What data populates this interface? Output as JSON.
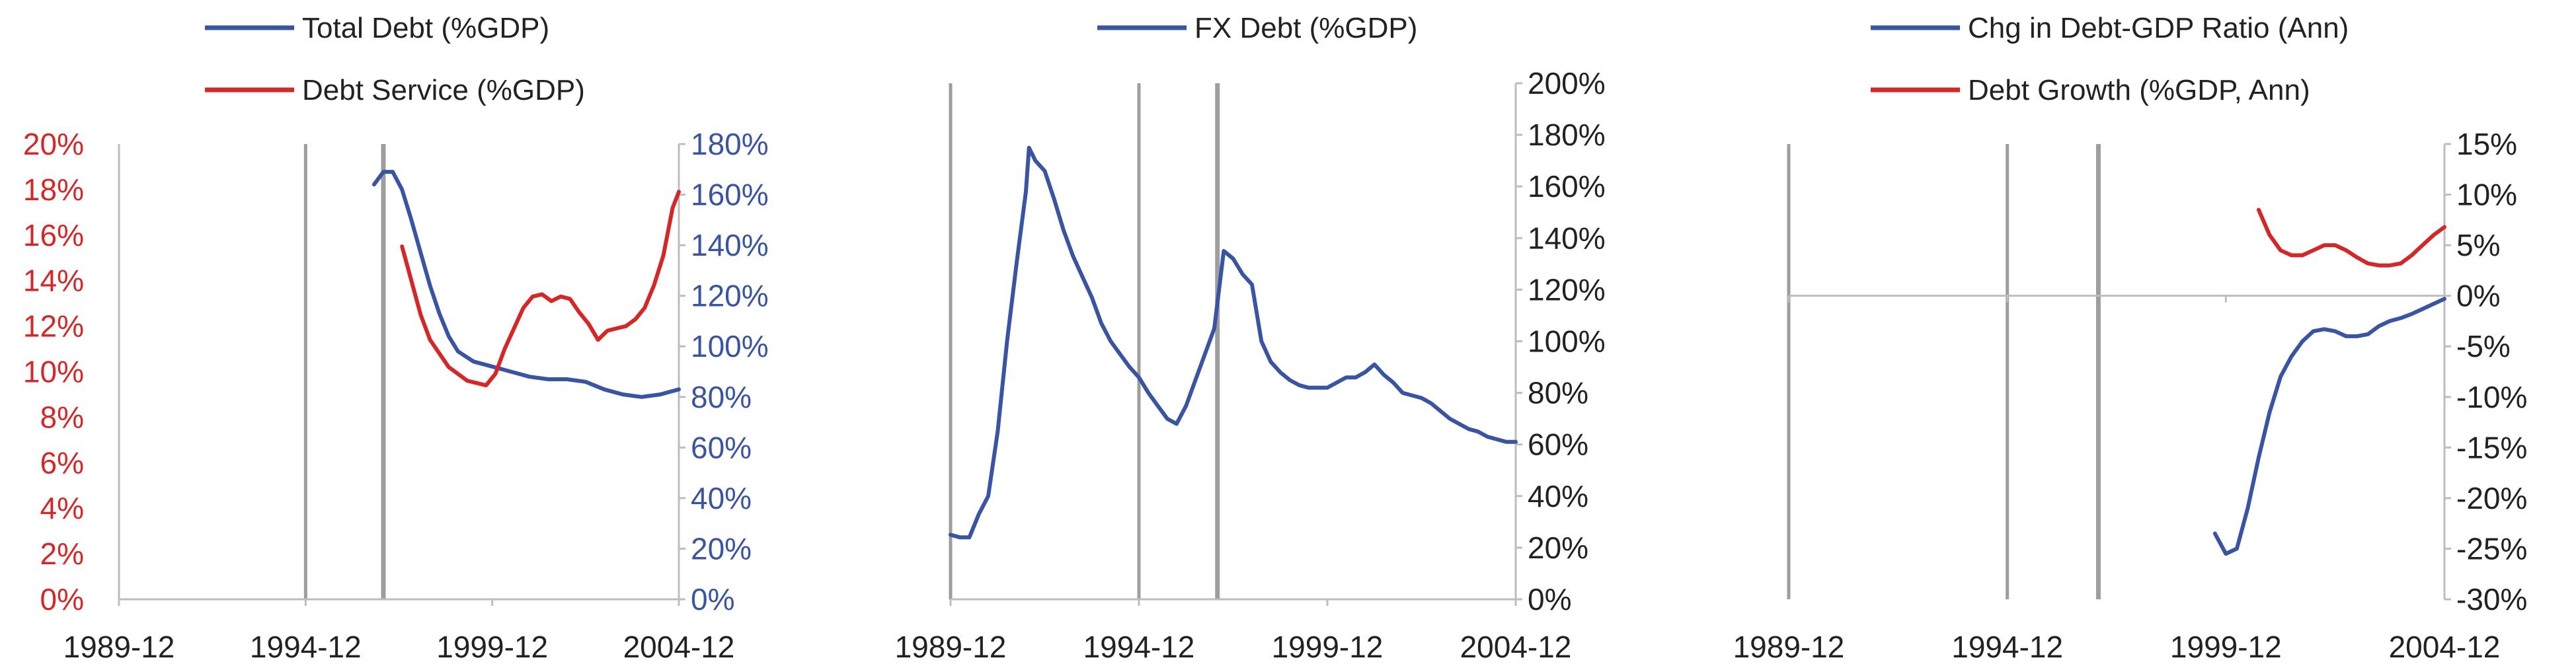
{
  "chart_data": [
    {
      "type": "line",
      "title": "",
      "x_ticks": [
        "1989-12",
        "1994-12",
        "1999-12",
        "2004-12"
      ],
      "x_range": [
        "1989-12",
        "2004-12"
      ],
      "vertical_markers": [
        "1994-12",
        "1997-01"
      ],
      "y_left": {
        "ticks": [
          "0%",
          "2%",
          "4%",
          "6%",
          "8%",
          "10%",
          "12%",
          "14%",
          "16%",
          "18%",
          "20%"
        ],
        "range": [
          0,
          20
        ],
        "color": "#d62728"
      },
      "y_right": {
        "ticks": [
          "0%",
          "20%",
          "40%",
          "60%",
          "80%",
          "100%",
          "120%",
          "140%",
          "160%",
          "180%"
        ],
        "range": [
          0,
          180
        ],
        "color": "#3a54a4"
      },
      "legend": [
        "Total Debt (%GDP)",
        "Debt Service (%GDP)"
      ],
      "series": [
        {
          "name": "Total Debt (%GDP)",
          "color": "#3a54a4",
          "axis": "right",
          "x": [
            "1996-10",
            "1997-01",
            "1997-04",
            "1997-07",
            "1997-10",
            "1998-01",
            "1998-04",
            "1998-07",
            "1998-10",
            "1999-01",
            "1999-06",
            "1999-12",
            "2000-06",
            "2000-12",
            "2001-06",
            "2001-12",
            "2002-06",
            "2002-12",
            "2003-06",
            "2003-12",
            "2004-06",
            "2004-12"
          ],
          "values": [
            164,
            169,
            169,
            162,
            150,
            137,
            124,
            113,
            104,
            98,
            94,
            92,
            90,
            88,
            87,
            87,
            86,
            83,
            81,
            80,
            81,
            83
          ]
        },
        {
          "name": "Debt Service (%GDP)",
          "color": "#d62728",
          "axis": "left",
          "x": [
            "1997-07",
            "1997-10",
            "1998-01",
            "1998-04",
            "1998-07",
            "1998-10",
            "1999-01",
            "1999-04",
            "1999-07",
            "1999-10",
            "2000-01",
            "2000-04",
            "2000-07",
            "2000-10",
            "2001-01",
            "2001-04",
            "2001-07",
            "2001-10",
            "2002-01",
            "2002-04",
            "2002-07",
            "2002-10",
            "2003-01",
            "2003-04",
            "2003-07",
            "2003-10",
            "2004-01",
            "2004-04",
            "2004-07",
            "2004-10",
            "2004-12"
          ],
          "values": [
            15.5,
            14.0,
            12.5,
            11.4,
            10.8,
            10.2,
            9.9,
            9.6,
            9.5,
            9.4,
            9.9,
            11.0,
            11.9,
            12.8,
            13.3,
            13.4,
            13.1,
            13.3,
            13.2,
            12.6,
            12.1,
            11.4,
            11.8,
            11.9,
            12.0,
            12.3,
            12.8,
            13.8,
            15.1,
            17.2,
            17.9
          ]
        }
      ]
    },
    {
      "type": "line",
      "title": "",
      "x_ticks": [
        "1989-12",
        "1994-12",
        "1999-12",
        "2004-12"
      ],
      "x_range": [
        "1989-12",
        "2004-12"
      ],
      "vertical_markers": [
        "1989-12",
        "1994-12",
        "1997-01"
      ],
      "y_right": {
        "ticks": [
          "0%",
          "20%",
          "40%",
          "60%",
          "80%",
          "100%",
          "120%",
          "140%",
          "160%",
          "180%",
          "200%"
        ],
        "range": [
          0,
          200
        ],
        "color": "#222222"
      },
      "legend": [
        "FX Debt (%GDP)"
      ],
      "series": [
        {
          "name": "FX Debt (%GDP)",
          "color": "#3a54a4",
          "axis": "right",
          "x": [
            "1989-12",
            "1990-03",
            "1990-06",
            "1990-09",
            "1990-12",
            "1991-03",
            "1991-06",
            "1991-09",
            "1991-12",
            "1992-01",
            "1992-03",
            "1992-06",
            "1992-09",
            "1992-12",
            "1993-03",
            "1993-06",
            "1993-09",
            "1993-12",
            "1994-03",
            "1994-06",
            "1994-09",
            "1994-12",
            "1995-03",
            "1995-06",
            "1995-09",
            "1995-12",
            "1996-03",
            "1996-06",
            "1996-09",
            "1996-12",
            "1997-03",
            "1997-06",
            "1997-09",
            "1997-12",
            "1998-03",
            "1998-06",
            "1998-09",
            "1998-12",
            "1999-03",
            "1999-06",
            "1999-09",
            "1999-12",
            "2000-03",
            "2000-06",
            "2000-09",
            "2000-12",
            "2001-03",
            "2001-06",
            "2001-09",
            "2001-12",
            "2002-03",
            "2002-06",
            "2002-09",
            "2002-12",
            "2003-03",
            "2003-06",
            "2003-09",
            "2003-12",
            "2004-03",
            "2004-06",
            "2004-09",
            "2004-12"
          ],
          "values": [
            25,
            24,
            24,
            33,
            40,
            65,
            100,
            130,
            158,
            175,
            170,
            166,
            155,
            143,
            133,
            125,
            117,
            107,
            100,
            95,
            90,
            86,
            80,
            75,
            70,
            68,
            75,
            85,
            95,
            105,
            135,
            132,
            126,
            122,
            100,
            92,
            88,
            85,
            83,
            82,
            82,
            82,
            84,
            86,
            86,
            88,
            91,
            87,
            84,
            80,
            79,
            78,
            76,
            73,
            70,
            68,
            66,
            65,
            63,
            62,
            61,
            61
          ]
        }
      ]
    },
    {
      "type": "line",
      "title": "",
      "x_ticks": [
        "1989-12",
        "1994-12",
        "1999-12",
        "2004-12"
      ],
      "x_range": [
        "1989-12",
        "2004-12"
      ],
      "vertical_markers": [
        "1989-12",
        "1994-12",
        "1997-01"
      ],
      "y_right": {
        "ticks": [
          "15%",
          "10%",
          "5%",
          "0%",
          "-5%",
          "-10%",
          "-15%",
          "-20%",
          "-25%",
          "-30%"
        ],
        "range": [
          -30,
          15
        ],
        "color": "#222222"
      },
      "legend": [
        "Chg in Debt-GDP Ratio (Ann)",
        "Debt Growth (%GDP, Ann)"
      ],
      "series": [
        {
          "name": "Chg in Debt-GDP Ratio (Ann)",
          "color": "#3a54a4",
          "axis": "right",
          "x": [
            "1999-09",
            "1999-12",
            "2000-03",
            "2000-06",
            "2000-09",
            "2000-12",
            "2001-03",
            "2001-06",
            "2001-09",
            "2001-12",
            "2002-03",
            "2002-06",
            "2002-09",
            "2002-12",
            "2003-03",
            "2003-06",
            "2003-09",
            "2003-12",
            "2004-03",
            "2004-06",
            "2004-09",
            "2004-12"
          ],
          "values": [
            -23.5,
            -25.5,
            -25.0,
            -21.0,
            -16.0,
            -11.5,
            -8.0,
            -6.0,
            -4.5,
            -3.5,
            -3.3,
            -3.5,
            -4.0,
            -4.0,
            -3.8,
            -3.0,
            -2.5,
            -2.2,
            -1.8,
            -1.3,
            -0.8,
            -0.3
          ]
        },
        {
          "name": "Debt Growth (%GDP, Ann)",
          "color": "#d62728",
          "axis": "right",
          "x": [
            "2000-09",
            "2000-12",
            "2001-03",
            "2001-06",
            "2001-09",
            "2001-12",
            "2002-03",
            "2002-06",
            "2002-09",
            "2002-12",
            "2003-03",
            "2003-06",
            "2003-09",
            "2003-12",
            "2004-03",
            "2004-06",
            "2004-09",
            "2004-12"
          ],
          "values": [
            8.5,
            6.0,
            4.5,
            4.0,
            4.0,
            4.5,
            5.0,
            5.0,
            4.5,
            3.8,
            3.2,
            3.0,
            3.0,
            3.2,
            4.0,
            5.0,
            6.0,
            6.8
          ]
        }
      ]
    }
  ]
}
